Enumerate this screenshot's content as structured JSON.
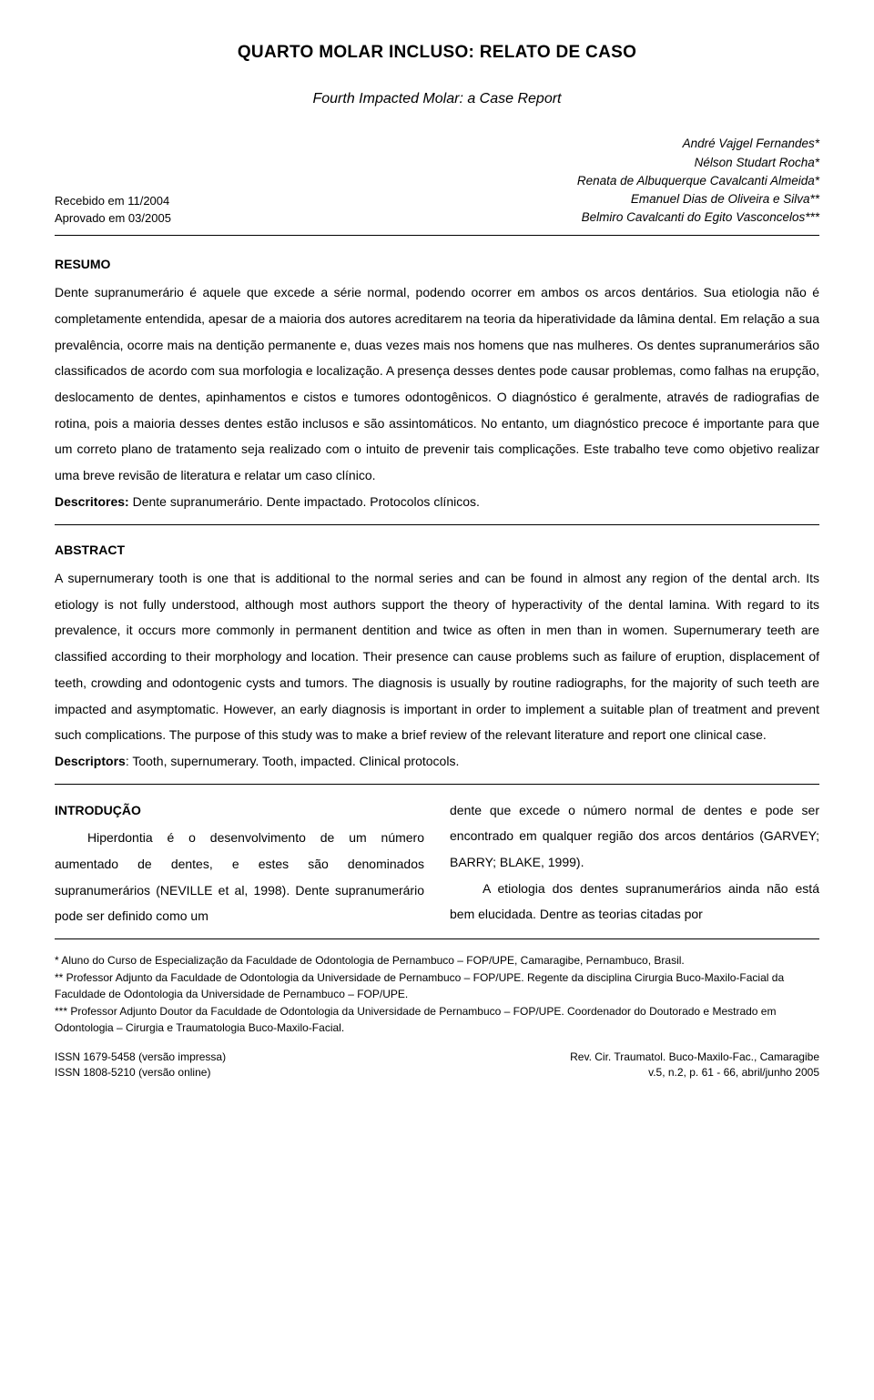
{
  "title": "QUARTO MOLAR INCLUSO: RELATO DE CASO",
  "subtitle": "Fourth Impacted Molar: a Case Report",
  "dates": {
    "received": "Recebido em 11/2004",
    "approved": "Aprovado em 03/2005"
  },
  "authors": [
    "André Vajgel Fernandes*",
    "Nélson Studart Rocha*",
    "Renata de Albuquerque Cavalcanti Almeida*",
    "Emanuel Dias de Oliveira e Silva**",
    "Belmiro Cavalcanti do Egito Vasconcelos***"
  ],
  "resumo": {
    "label": "RESUMO",
    "text": "Dente supranumerário é aquele que excede a série normal, podendo ocorrer em ambos os arcos dentários. Sua etiologia não é completamente entendida, apesar de a maioria dos autores acreditarem na teoria da hiperatividade da lâmina dental. Em relação a sua prevalência, ocorre mais na dentição permanente e, duas vezes mais nos homens que nas mulheres. Os dentes supranumerários são classificados de acordo com sua morfologia e localização. A presença desses dentes pode causar problemas, como falhas na erupção, deslocamento de dentes, apinhamentos e cistos e tumores odontogênicos. O diagnóstico é geralmente, através de radiografias de rotina, pois a maioria desses dentes estão inclusos e são assintomáticos. No entanto, um diagnóstico precoce é importante para que um correto plano de tratamento seja realizado com o intuito de prevenir tais complicações. Este trabalho teve como objetivo realizar uma breve revisão de literatura e relatar um caso clínico.",
    "descriptors_label": "Descritores:",
    "descriptors_text": " Dente supranumerário. Dente impactado. Protocolos clínicos."
  },
  "abstract": {
    "label": "ABSTRACT",
    "text": "A supernumerary tooth is one that is additional to the normal series and can be found in almost any region of the dental arch. Its etiology is not fully understood, although most authors support the theory of hyperactivity of the dental lamina. With regard to its prevalence, it occurs more commonly in permanent dentition and twice as often in men than in women. Supernumerary teeth are classified according to their morphology and location. Their presence can cause problems such as failure of eruption, displacement of teeth, crowding and odontogenic cysts and tumors. The diagnosis is usually by routine radiographs, for the majority of such teeth are impacted and asymptomatic. However, an early diagnosis is important in order to implement a suitable plan of treatment and prevent such complications. The purpose of this study was to make a brief review of the relevant literature and report one clinical case.",
    "descriptors_label": "Descriptors",
    "descriptors_text": ": Tooth, supernumerary. Tooth, impacted. Clinical protocols."
  },
  "intro": {
    "label": "INTRODUÇÃO",
    "left": "Hiperdontia é o desenvolvimento de um número aumentado de dentes, e estes são denominados supranumerários (NEVILLE et al, 1998). Dente supranumerário pode ser definido como um",
    "right": "dente que excede o número normal de dentes e pode ser encontrado em qualquer região dos arcos dentários (GARVEY; BARRY; BLAKE, 1999).",
    "right2": "A etiologia dos dentes supranumerários ainda não está bem elucidada. Dentre as teorias citadas por"
  },
  "footnotes": [
    "* Aluno do Curso de Especialização da Faculdade de Odontologia de Pernambuco – FOP/UPE, Camaragibe, Pernambuco, Brasil.",
    "** Professor Adjunto da Faculdade de Odontologia da Universidade de Pernambuco – FOP/UPE. Regente da disciplina Cirurgia Buco-Maxilo-Facial da Faculdade de Odontologia da Universidade de Pernambuco – FOP/UPE.",
    "*** Professor Adjunto Doutor da Faculdade de Odontologia da Universidade de Pernambuco – FOP/UPE. Coordenador do Doutorado e Mestrado em Odontologia – Cirurgia e Traumatologia Buco-Maxilo-Facial."
  ],
  "footer": {
    "issn1": "ISSN 1679-5458 (versão impressa)",
    "issn2": "ISSN 1808-5210 (versão online)",
    "journal": "Rev. Cir. Traumatol. Buco-Maxilo-Fac., Camaragibe",
    "citation": "v.5, n.2, p. 61 - 66, abril/junho 2005"
  }
}
